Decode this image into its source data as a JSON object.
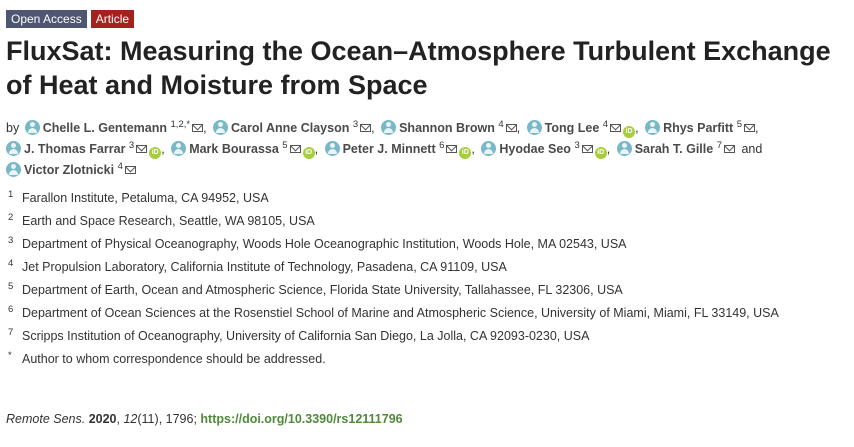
{
  "badges": {
    "open_access": "Open Access",
    "article": "Article"
  },
  "title": "FluxSat: Measuring the Ocean–Atmosphere Turbulent Exchange of Heat and Moisture from Space",
  "authors_by": "by",
  "authors": [
    {
      "name": "Chelle L. Gentemann",
      "sup": "1,2,*",
      "mail": true,
      "orcid": false,
      "sep": ","
    },
    {
      "name": "Carol Anne Clayson",
      "sup": "3",
      "mail": true,
      "orcid": false,
      "sep": ","
    },
    {
      "name": "Shannon Brown",
      "sup": "4",
      "mail": true,
      "orcid": false,
      "sep": ","
    },
    {
      "name": "Tong Lee",
      "sup": "4",
      "mail": true,
      "orcid": true,
      "sep": ","
    },
    {
      "name": "Rhys Parfitt",
      "sup": "5",
      "mail": true,
      "orcid": false,
      "sep": ","
    },
    {
      "name": "J. Thomas Farrar",
      "sup": "3",
      "mail": true,
      "orcid": true,
      "sep": ","
    },
    {
      "name": "Mark Bourassa",
      "sup": "5",
      "mail": true,
      "orcid": true,
      "sep": ","
    },
    {
      "name": "Peter J. Minnett",
      "sup": "6",
      "mail": true,
      "orcid": true,
      "sep": ","
    },
    {
      "name": "Hyodae Seo",
      "sup": "3",
      "mail": true,
      "orcid": true,
      "sep": ","
    },
    {
      "name": "Sarah T. Gille",
      "sup": "7",
      "mail": true,
      "orcid": false,
      "sep": "and"
    },
    {
      "name": "Victor Zlotnicki",
      "sup": "4",
      "mail": true,
      "orcid": false,
      "sep": ""
    }
  ],
  "affiliations": [
    {
      "num": "1",
      "text": "Farallon Institute, Petaluma, CA 94952, USA"
    },
    {
      "num": "2",
      "text": "Earth and Space Research, Seattle, WA 98105, USA"
    },
    {
      "num": "3",
      "text": "Department of Physical Oceanography, Woods Hole Oceanographic Institution, Woods Hole, MA 02543, USA"
    },
    {
      "num": "4",
      "text": "Jet Propulsion Laboratory, California Institute of Technology, Pasadena, CA 91109, USA"
    },
    {
      "num": "5",
      "text": "Department of Earth, Ocean and Atmospheric Science, Florida State University, Tallahassee, FL 32306, USA"
    },
    {
      "num": "6",
      "text": "Department of Ocean Sciences at the Rosenstiel School of Marine and Atmospheric Science, University of Miami, Miami, FL 33149, USA"
    },
    {
      "num": "7",
      "text": "Scripps Institution of Oceanography, University of California San Diego, La Jolla, CA 92093-0230, USA"
    },
    {
      "num": "*",
      "text": "Author to whom correspondence should be addressed."
    }
  ],
  "citation": {
    "journal": "Remote Sens.",
    "year": "2020",
    "volume": "12",
    "issue": "(11)",
    "pages": ", 1796;",
    "doi": "https://doi.org/10.3390/rs12111796"
  }
}
